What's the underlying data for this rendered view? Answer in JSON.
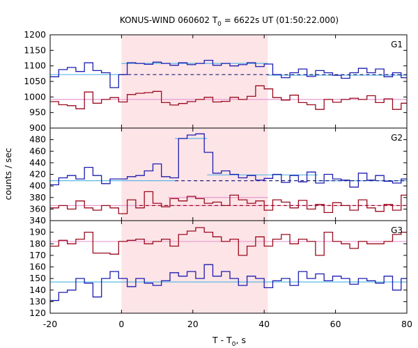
{
  "chart_data": {
    "type": "line",
    "title_main": "KONUS-WIND 060602 T",
    "title_sub": "0",
    "title_rest": " = 6622s UT (01:50:22.000)",
    "xlabel_main": "T - T",
    "xlabel_sub": "0",
    "xlabel_rest": ", s",
    "ylabel": "counts / sec",
    "xlim": [
      -20,
      80
    ],
    "x_ticks": [
      "-20",
      "0",
      "20",
      "40",
      "60",
      "80"
    ],
    "shaded_interval": [
      0,
      41
    ],
    "colors": {
      "blue": "#1c1cb0",
      "red": "#9a0a1e",
      "cyan": "#5ab8e6",
      "pink": "#e79ad0",
      "shade": "#fde4e7",
      "darkblue": "#1c1c7a",
      "darkred": "#9a0a1e"
    },
    "panels": [
      {
        "label": "G1",
        "ylim": [
          900,
          1200
        ],
        "y_ticks": [
          "900",
          "950",
          "1000",
          "1050",
          "1100",
          "1150",
          "1200"
        ],
        "series": [
          {
            "color": "blue",
            "x": [
              -20,
              -17.6,
              -15.2,
              -12.8,
              -10.4,
              -8,
              -5.6,
              -3.2,
              -0.8,
              1.6,
              4,
              6.4,
              8.8,
              11.2,
              13.6,
              16,
              18.4,
              20.8,
              23.2,
              25.6,
              28,
              30.4,
              32.8,
              35.2,
              37.6,
              40,
              42.4,
              44.8,
              47.2,
              49.6,
              52,
              54.4,
              56.8,
              59.2,
              61.6,
              64,
              66.4,
              68.8,
              71.2,
              73.6,
              76,
              78.4,
              80
            ],
            "values": [
              1065,
              1088,
              1095,
              1082,
              1110,
              1085,
              1078,
              1030,
              1072,
              1110,
              1108,
              1105,
              1112,
              1108,
              1102,
              1110,
              1104,
              1108,
              1118,
              1102,
              1108,
              1100,
              1104,
              1110,
              1098,
              1106,
              1072,
              1062,
              1078,
              1090,
              1066,
              1085,
              1078,
              1070,
              1060,
              1078,
              1092,
              1078,
              1090,
              1065,
              1078,
              1062,
              1070
            ]
          },
          {
            "color": "red",
            "x": [
              -20,
              -17.6,
              -15.2,
              -12.8,
              -10.4,
              -8,
              -5.6,
              -3.2,
              -0.8,
              1.6,
              4,
              6.4,
              8.8,
              11.2,
              13.6,
              16,
              18.4,
              20.8,
              23.2,
              25.6,
              28,
              30.4,
              32.8,
              35.2,
              37.6,
              40,
              42.4,
              44.8,
              47.2,
              49.6,
              52,
              54.4,
              56.8,
              59.2,
              61.6,
              64,
              66.4,
              68.8,
              71.2,
              73.6,
              76,
              78.4,
              80
            ],
            "values": [
              985,
              975,
              972,
              962,
              1016,
              980,
              992,
              998,
              984,
              1008,
              1012,
              1014,
              1018,
              982,
              974,
              979,
              985,
              992,
              999,
              984,
              986,
              999,
              992,
              1002,
              1036,
              1026,
              998,
              990,
              1006,
              982,
              975,
              960,
              992,
              983,
              992,
              996,
              992,
              1004,
              982,
              994,
              960,
              980,
              992
            ]
          }
        ],
        "fit_lines": [
          {
            "color": "cyan",
            "style": "solid",
            "x": [
              -20,
              0
            ],
            "y": 1072
          },
          {
            "color": "cyan",
            "style": "solid",
            "x": [
              0,
              41
            ],
            "y": 1108
          },
          {
            "color": "cyan",
            "style": "solid",
            "x": [
              41,
              80
            ],
            "y": 1070
          },
          {
            "color": "darkblue",
            "style": "dashed",
            "x": [
              0,
              80
            ],
            "y": 1072
          },
          {
            "color": "pink",
            "style": "solid",
            "x": [
              -20,
              80
            ],
            "y": 992
          }
        ]
      },
      {
        "label": "G2",
        "ylim": [
          340,
          500
        ],
        "y_ticks": [
          "340",
          "360",
          "380",
          "400",
          "420",
          "440",
          "460",
          "480",
          "500"
        ],
        "series": [
          {
            "color": "blue",
            "x": [
              -20,
              -17.6,
              -15.2,
              -12.8,
              -10.4,
              -8,
              -5.6,
              -3.2,
              -0.8,
              1.6,
              4,
              6.4,
              8.8,
              11.2,
              13.6,
              16,
              18.4,
              20.8,
              23.2,
              25.6,
              28,
              30.4,
              32.8,
              35.2,
              37.6,
              40,
              42.4,
              44.8,
              47.2,
              49.6,
              52,
              54.4,
              56.8,
              59.2,
              61.6,
              64,
              66.4,
              68.8,
              71.2,
              73.6,
              76,
              78.4,
              80
            ],
            "values": [
              402,
              414,
              418,
              412,
              432,
              418,
              404,
              412,
              412,
              416,
              418,
              426,
              438,
              416,
              414,
              482,
              488,
              490,
              458,
              422,
              426,
              420,
              414,
              418,
              410,
              413,
              420,
              406,
              418,
              407,
              424,
              405,
              420,
              412,
              410,
              398,
              422,
              410,
              418,
              408,
              405,
              412,
              410
            ]
          },
          {
            "color": "red",
            "x": [
              -20,
              -17.6,
              -15.2,
              -12.8,
              -10.4,
              -8,
              -5.6,
              -3.2,
              -0.8,
              1.6,
              4,
              6.4,
              8.8,
              11.2,
              13.6,
              16,
              18.4,
              20.8,
              23.2,
              25.6,
              28,
              30.4,
              32.8,
              35.2,
              37.6,
              40,
              42.4,
              44.8,
              47.2,
              49.6,
              52,
              54.4,
              56.8,
              59.2,
              61.6,
              64,
              66.4,
              68.8,
              71.2,
              73.6,
              76,
              78.4,
              80
            ],
            "values": [
              362,
              366,
              360,
              374,
              362,
              358,
              366,
              362,
              352,
              376,
              362,
              390,
              370,
              364,
              378,
              374,
              382,
              378,
              370,
              372,
              366,
              384,
              376,
              370,
              374,
              358,
              376,
              372,
              362,
              375,
              360,
              368,
              354,
              371,
              366,
              358,
              376,
              362,
              356,
              368,
              358,
              384,
              390
            ]
          }
        ],
        "fit_lines": [
          {
            "color": "cyan",
            "style": "solid",
            "x": [
              -20,
              15
            ],
            "y": 409
          },
          {
            "color": "cyan",
            "style": "solid",
            "x": [
              15,
              24
            ],
            "y": 482
          },
          {
            "color": "cyan",
            "style": "solid",
            "x": [
              24,
              55
            ],
            "y": 419
          },
          {
            "color": "cyan",
            "style": "solid",
            "x": [
              55,
              80
            ],
            "y": 409
          },
          {
            "color": "darkblue",
            "style": "dashed",
            "x": [
              15,
              80
            ],
            "y": 409
          },
          {
            "color": "pink",
            "style": "solid",
            "x": [
              -20,
              80
            ],
            "y": 366
          },
          {
            "color": "pink",
            "style": "solid",
            "x": [
              13,
              41
            ],
            "y": 380
          },
          {
            "color": "darkred",
            "style": "dashed",
            "x": [
              5,
              80
            ],
            "y": 366
          }
        ]
      },
      {
        "label": "G3",
        "ylim": [
          120,
          200
        ],
        "y_ticks": [
          "120",
          "130",
          "140",
          "150",
          "160",
          "170",
          "180",
          "190",
          "200"
        ],
        "series": [
          {
            "color": "red",
            "x": [
              -20,
              -17.6,
              -15.2,
              -12.8,
              -10.4,
              -8,
              -5.6,
              -3.2,
              -0.8,
              1.6,
              4,
              6.4,
              8.8,
              11.2,
              13.6,
              16,
              18.4,
              20.8,
              23.2,
              25.6,
              28,
              30.4,
              32.8,
              35.2,
              37.6,
              40,
              42.4,
              44.8,
              47.2,
              49.6,
              52,
              54.4,
              56.8,
              59.2,
              61.6,
              64,
              66.4,
              68.8,
              71.2,
              73.6,
              76,
              78.4,
              80
            ],
            "values": [
              178,
              183,
              180,
              184,
              190,
              172,
              172,
              171,
              182,
              183,
              184,
              180,
              182,
              184,
              178,
              188,
              191,
              194,
              190,
              186,
              182,
              184,
              170,
              178,
              186,
              178,
              184,
              188,
              180,
              184,
              182,
              170,
              190,
              182,
              180,
              176,
              182,
              180,
              180,
              182,
              188,
              190,
              192
            ]
          },
          {
            "color": "blue",
            "x": [
              -20,
              -17.6,
              -15.2,
              -12.8,
              -10.4,
              -8,
              -5.6,
              -3.2,
              -0.8,
              1.6,
              4,
              6.4,
              8.8,
              11.2,
              13.6,
              16,
              18.4,
              20.8,
              23.2,
              25.6,
              28,
              30.4,
              32.8,
              35.2,
              37.6,
              40,
              42.4,
              44.8,
              47.2,
              49.6,
              52,
              54.4,
              56.8,
              59.2,
              61.6,
              64,
              66.4,
              68.8,
              71.2,
              73.6,
              76,
              78.4,
              80
            ],
            "values": [
              131,
              138,
              140,
              150,
              146,
              134,
              150,
              156,
              150,
              143,
              150,
              146,
              144,
              148,
              155,
              152,
              156,
              150,
              162,
              152,
              156,
              150,
              144,
              152,
              150,
              142,
              148,
              150,
              144,
              156,
              150,
              154,
              148,
              152,
              150,
              145,
              150,
              148,
              146,
              152,
              140,
              150,
              145
            ]
          }
        ],
        "fit_lines": [
          {
            "color": "pink",
            "style": "solid",
            "x": [
              -20,
              80
            ],
            "y": 182
          },
          {
            "color": "cyan",
            "style": "solid",
            "x": [
              -20,
              80
            ],
            "y": 147
          }
        ]
      }
    ]
  }
}
